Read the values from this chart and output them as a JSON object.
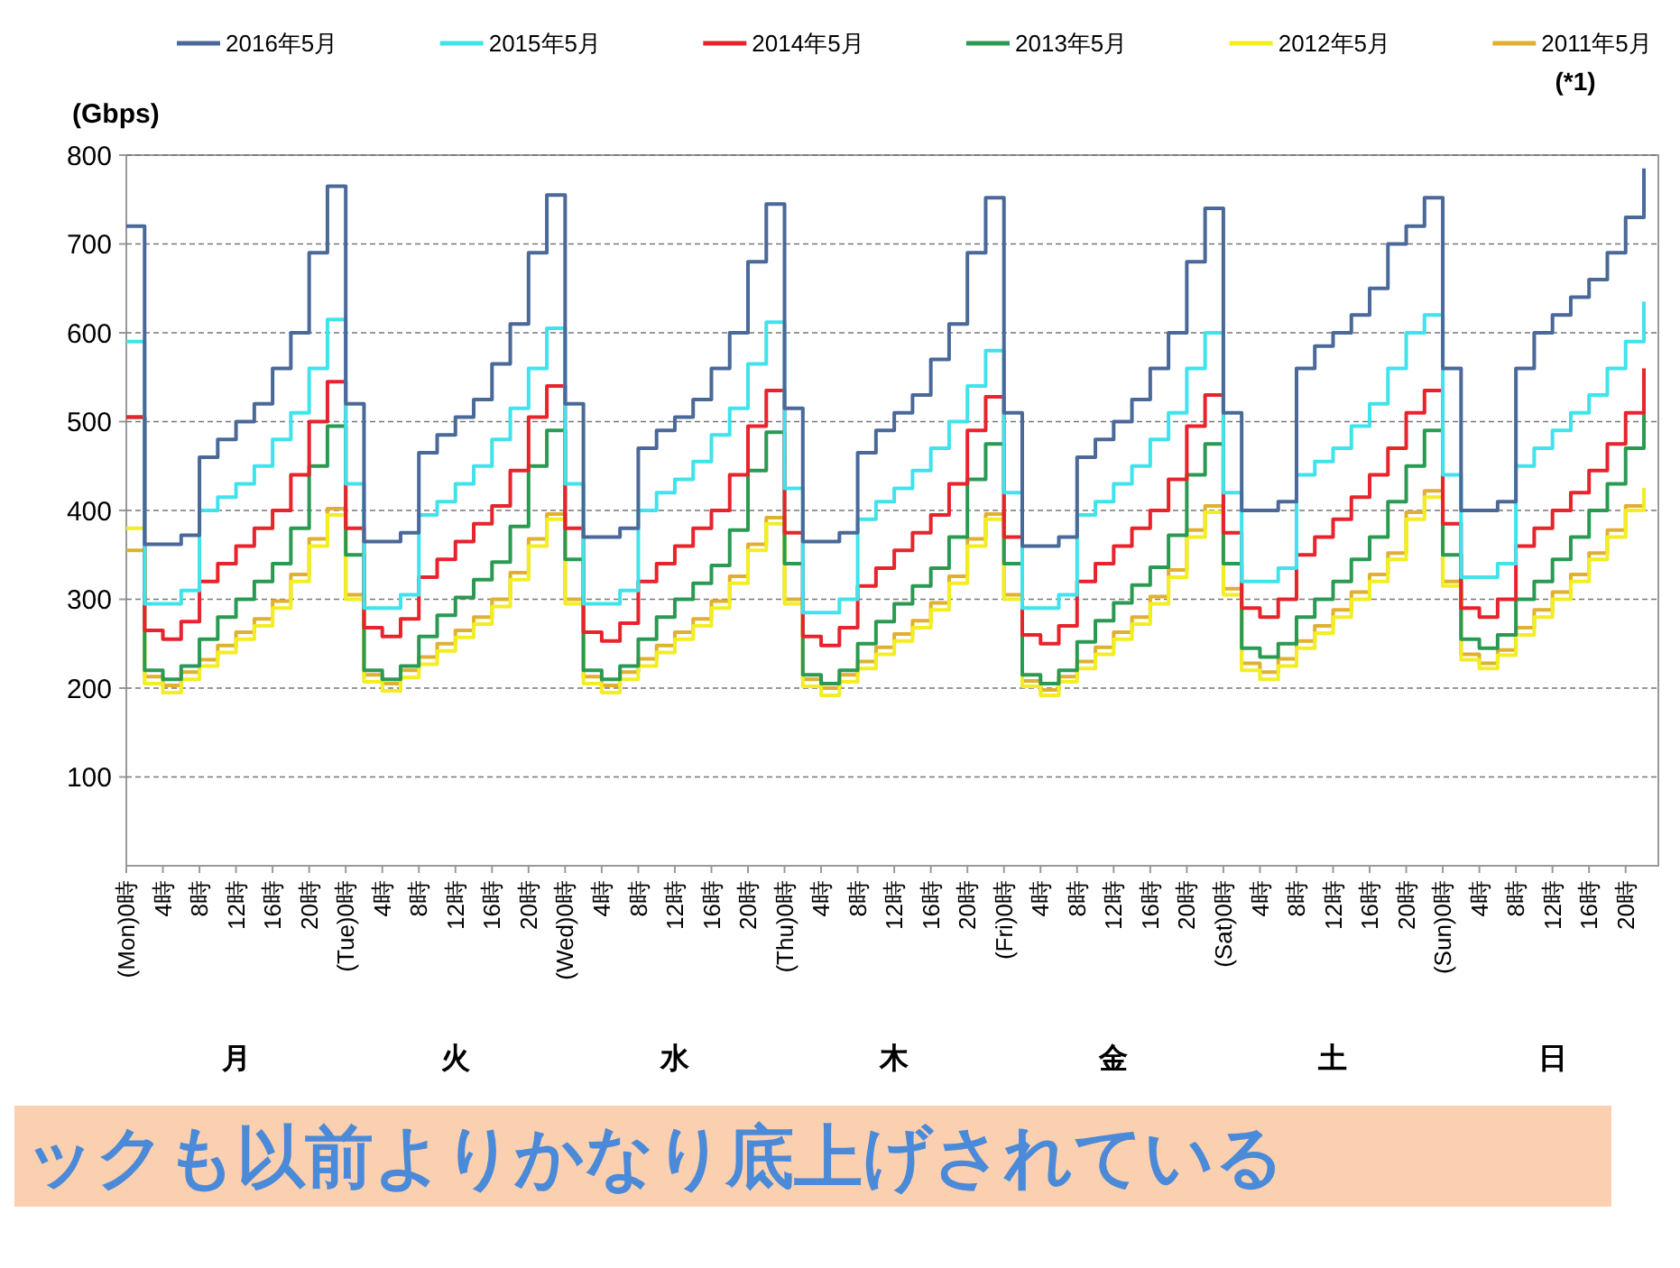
{
  "chart_data": {
    "type": "step",
    "ylabel": "(Gbps)",
    "legend": "top",
    "grid": "y",
    "marker": "none",
    "line_style": "solid",
    "ylim": [
      0,
      800
    ],
    "yticks": [
      100,
      200,
      300,
      400,
      500,
      600,
      700,
      800
    ],
    "categories": [
      "(Mon)0時",
      null,
      "4時",
      null,
      "8時",
      null,
      "12時",
      null,
      "16時",
      null,
      "20時",
      null,
      "(Tue)0時",
      null,
      "4時",
      null,
      "8時",
      null,
      "12時",
      null,
      "16時",
      null,
      "20時",
      null,
      "(Wed)0時",
      null,
      "4時",
      null,
      "8時",
      null,
      "12時",
      null,
      "16時",
      null,
      "20時",
      null,
      "(Thu)0時",
      null,
      "4時",
      null,
      "8時",
      null,
      "12時",
      null,
      "16時",
      null,
      "20時",
      null,
      "(Fri)0時",
      null,
      "4時",
      null,
      "8時",
      null,
      "12時",
      null,
      "16時",
      null,
      "20時",
      null,
      "(Sat)0時",
      null,
      "4時",
      null,
      "8時",
      null,
      "12時",
      null,
      "16時",
      null,
      "20時",
      null,
      "(Sun)0時",
      null,
      "4時",
      null,
      "8時",
      null,
      "12時",
      null,
      "16時",
      null,
      "20時",
      null
    ],
    "series": [
      {
        "name": "2016年5月",
        "color": "#4a6898",
        "values": [
          720,
          362,
          362,
          372,
          460,
          480,
          500,
          520,
          560,
          600,
          690,
          765,
          520,
          365,
          365,
          375,
          465,
          485,
          505,
          525,
          565,
          610,
          690,
          755,
          520,
          370,
          370,
          380,
          470,
          490,
          505,
          525,
          560,
          600,
          680,
          745,
          515,
          365,
          365,
          375,
          465,
          490,
          510,
          530,
          570,
          610,
          690,
          752,
          510,
          360,
          360,
          370,
          460,
          480,
          500,
          525,
          560,
          600,
          680,
          740,
          510,
          400,
          400,
          410,
          560,
          585,
          600,
          620,
          650,
          700,
          720,
          752,
          560,
          400,
          400,
          410,
          560,
          600,
          620,
          640,
          660,
          690,
          730,
          785
        ]
      },
      {
        "name": "2015年5月",
        "color": "#3fe3ec",
        "values": [
          590,
          295,
          295,
          310,
          400,
          415,
          430,
          450,
          480,
          510,
          560,
          615,
          430,
          290,
          290,
          305,
          395,
          410,
          430,
          450,
          480,
          515,
          560,
          605,
          430,
          295,
          295,
          310,
          400,
          420,
          435,
          455,
          485,
          515,
          565,
          612,
          425,
          285,
          285,
          300,
          390,
          410,
          425,
          445,
          470,
          500,
          540,
          580,
          420,
          290,
          290,
          305,
          395,
          410,
          430,
          450,
          480,
          510,
          560,
          600,
          420,
          320,
          320,
          335,
          440,
          455,
          470,
          495,
          520,
          560,
          600,
          620,
          440,
          325,
          325,
          340,
          450,
          470,
          490,
          510,
          530,
          560,
          590,
          635
        ]
      },
      {
        "name": "2014年5月",
        "color": "#e8232c",
        "values": [
          505,
          265,
          255,
          275,
          320,
          340,
          360,
          380,
          400,
          440,
          500,
          545,
          380,
          268,
          258,
          278,
          325,
          345,
          365,
          385,
          405,
          445,
          505,
          540,
          380,
          263,
          253,
          273,
          320,
          340,
          360,
          380,
          400,
          440,
          495,
          535,
          375,
          258,
          248,
          268,
          315,
          335,
          355,
          375,
          395,
          430,
          490,
          528,
          370,
          260,
          250,
          270,
          320,
          340,
          360,
          380,
          400,
          435,
          495,
          530,
          375,
          290,
          280,
          300,
          350,
          370,
          390,
          415,
          440,
          470,
          510,
          535,
          385,
          290,
          280,
          300,
          360,
          380,
          400,
          420,
          445,
          475,
          510,
          560
        ]
      },
      {
        "name": "2013年5月",
        "color": "#2a9a52",
        "values": [
          505,
          220,
          210,
          225,
          255,
          280,
          300,
          320,
          340,
          380,
          450,
          495,
          350,
          220,
          210,
          225,
          258,
          282,
          302,
          322,
          342,
          382,
          450,
          490,
          345,
          220,
          210,
          225,
          255,
          280,
          300,
          318,
          338,
          378,
          445,
          488,
          340,
          215,
          205,
          220,
          250,
          275,
          295,
          315,
          335,
          370,
          435,
          475,
          340,
          215,
          205,
          220,
          252,
          276,
          296,
          316,
          336,
          372,
          440,
          475,
          340,
          245,
          235,
          250,
          280,
          300,
          320,
          345,
          370,
          410,
          450,
          490,
          350,
          255,
          245,
          260,
          300,
          320,
          345,
          370,
          400,
          430,
          470,
          510
        ]
      },
      {
        "name": "2012年5月",
        "color": "#f2ee22",
        "values": [
          380,
          205,
          195,
          210,
          225,
          240,
          255,
          270,
          290,
          320,
          360,
          395,
          300,
          207,
          197,
          212,
          227,
          242,
          257,
          272,
          292,
          322,
          360,
          390,
          295,
          205,
          195,
          210,
          225,
          240,
          255,
          270,
          290,
          318,
          355,
          385,
          295,
          202,
          192,
          207,
          222,
          238,
          253,
          268,
          288,
          318,
          360,
          390,
          300,
          202,
          192,
          207,
          222,
          238,
          255,
          272,
          295,
          325,
          370,
          398,
          305,
          220,
          210,
          225,
          245,
          262,
          280,
          300,
          320,
          345,
          390,
          415,
          315,
          232,
          222,
          237,
          260,
          280,
          300,
          320,
          345,
          370,
          400,
          425
        ]
      },
      {
        "name": "2011年5月",
        "color": "#e0b030",
        "values": [
          355,
          213,
          203,
          218,
          232,
          248,
          263,
          278,
          298,
          328,
          368,
          402,
          305,
          215,
          205,
          220,
          235,
          250,
          265,
          280,
          300,
          330,
          368,
          396,
          300,
          213,
          203,
          218,
          233,
          248,
          263,
          278,
          298,
          326,
          362,
          392,
          300,
          210,
          200,
          215,
          230,
          246,
          261,
          276,
          296,
          326,
          368,
          396,
          305,
          208,
          198,
          213,
          230,
          246,
          263,
          280,
          303,
          333,
          378,
          405,
          312,
          228,
          218,
          233,
          253,
          270,
          288,
          308,
          328,
          352,
          398,
          422,
          320,
          238,
          228,
          243,
          268,
          288,
          308,
          328,
          352,
          378,
          405,
          425
        ]
      }
    ],
    "annotations": [
      "(*1)",
      "月",
      "火",
      "水",
      "木",
      "金",
      "土",
      "日",
      "ックも以前よりかなり底上げされている"
    ]
  }
}
